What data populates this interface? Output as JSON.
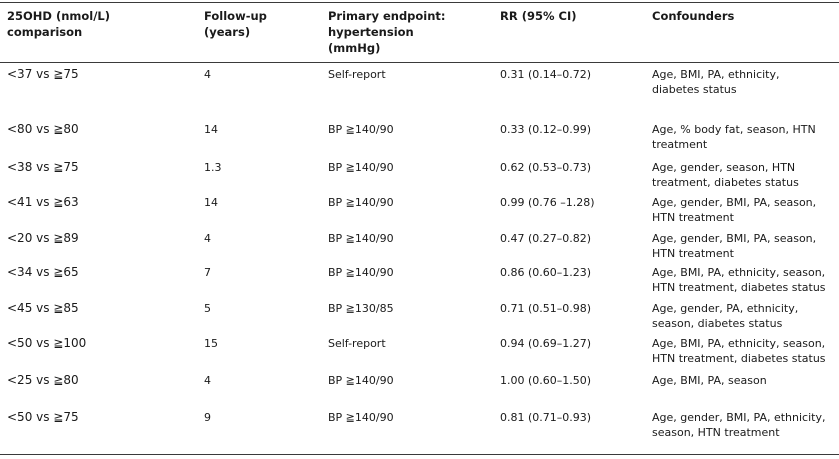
{
  "headers": {
    "comparison": [
      "25OHD (nmol/L)",
      "comparison"
    ],
    "followup": [
      "Follow-up",
      "(years)"
    ],
    "endpoint": [
      "Primary endpoint:",
      "hypertension",
      "(mmHg)"
    ],
    "rr": [
      "RR (95% CI)"
    ],
    "confounders": [
      "Confounders"
    ]
  },
  "rows": [
    {
      "comparison": "<37 vs ≧75",
      "followup": "4",
      "endpoint": "Self-report",
      "rr": "0.31 (0.14–0.72)",
      "confounders": [
        "Age, BMI, PA, ethnicity,",
        "diabetes status"
      ]
    },
    {
      "comparison": "<80 vs ≧80",
      "followup": "14",
      "endpoint": "BP ≧140/90",
      "rr": "0.33 (0.12–0.99)",
      "confounders": [
        "Age, % body fat, season, HTN",
        "treatment"
      ]
    },
    {
      "comparison": "<38 vs ≧75",
      "followup": "1.3",
      "endpoint": "BP ≧140/90",
      "rr": "0.62 (0.53–0.73)",
      "confounders": [
        "Age, gender, season, HTN",
        "treatment, diabetes status"
      ]
    },
    {
      "comparison": "<41 vs ≧63",
      "followup": "14",
      "endpoint": "BP ≧140/90",
      "rr": "0.99 (0.76 –1.28)",
      "confounders": [
        "Age, gender, BMI, PA, season,",
        "HTN treatment"
      ]
    },
    {
      "comparison": "<20 vs ≧89",
      "followup": "4",
      "endpoint": "BP ≧140/90",
      "rr": "0.47 (0.27–0.82)",
      "confounders": [
        "Age, gender, BMI, PA, season,",
        "HTN treatment"
      ]
    },
    {
      "comparison": "<34 vs ≧65",
      "followup": "7",
      "endpoint": "BP ≧140/90",
      "rr": "0.86 (0.60–1.23)",
      "confounders": [
        "Age, BMI, PA, ethnicity, season,",
        "HTN treatment, diabetes status"
      ]
    },
    {
      "comparison": "<45 vs ≧85",
      "followup": "5",
      "endpoint": "BP ≧130/85",
      "rr": "0.71 (0.51–0.98)",
      "confounders": [
        "Age, gender, PA, ethnicity,",
        "season, diabetes status"
      ]
    },
    {
      "comparison": "<50 vs ≧100",
      "followup": "15",
      "endpoint": "Self-report",
      "rr": "0.94 (0.69–1.27)",
      "confounders": [
        "Age, BMI, PA, ethnicity, season,",
        "HTN treatment, diabetes status"
      ]
    },
    {
      "comparison": "<25 vs ≧80",
      "followup": "4",
      "endpoint": "BP ≧140/90",
      "rr": "1.00 (0.60–1.50)",
      "confounders": [
        "Age, BMI, PA, season"
      ]
    },
    {
      "comparison": "<50 vs ≧75",
      "followup": "9",
      "endpoint": "BP ≧140/90",
      "rr": "0.81 (0.71–0.93)",
      "confounders": [
        "Age, gender, BMI, PA, ethnicity,",
        "season, HTN treatment"
      ]
    }
  ]
}
